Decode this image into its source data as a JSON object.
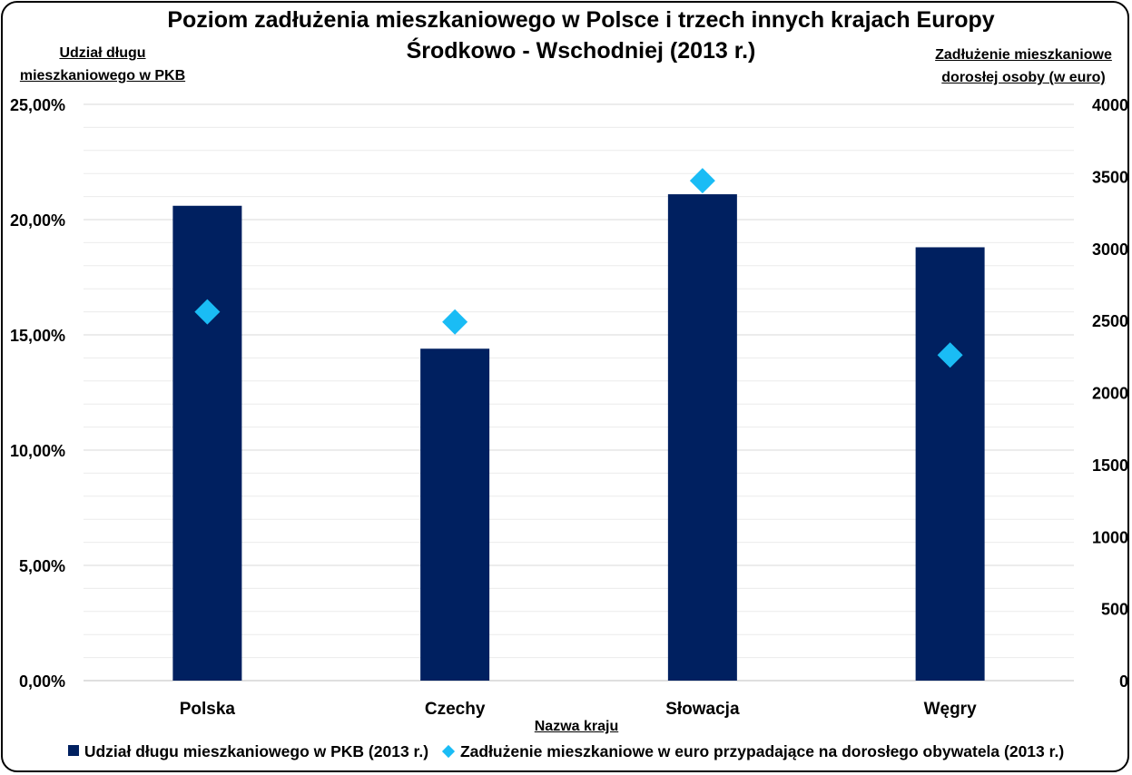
{
  "chart_data": {
    "type": "bar",
    "title_line1": "Poziom zadłużenia mieszkaniowego w Polsce i trzech innych krajach Europy",
    "title_line2": "Środkowo - Wschodniej (2013 r.)",
    "ylabel_left": "Udział długu mieszkaniowego w PKB",
    "ylabel_right": "Zadłużenie mieszkaniowe dorosłej osoby (w euro)",
    "xlabel": "Nazwa kraju",
    "categories": [
      "Polska",
      "Czechy",
      "Słowacja",
      "Węgry"
    ],
    "series": [
      {
        "name": "Udział długu mieszkaniowego w PKB (2013 r.)",
        "type": "bar",
        "axis": "left",
        "values": [
          20.6,
          14.4,
          21.1,
          18.8
        ],
        "color": "#002060"
      },
      {
        "name": "Zadłużenie mieszkaniowe w euro przypadające na dorosłego obywatela (2013 r.)",
        "type": "scatter",
        "marker": "diamond",
        "axis": "right",
        "values": [
          2560,
          2490,
          3470,
          2260
        ],
        "color": "#1ABCF5"
      }
    ],
    "ylim_left": [
      0,
      25
    ],
    "yticks_left": [
      "0,00%",
      "5,00%",
      "10,00%",
      "15,00%",
      "20,00%",
      "25,00%"
    ],
    "ylim_right": [
      0,
      4000
    ],
    "yticks_right": [
      "0",
      "500",
      "1000",
      "1500",
      "2000",
      "2500",
      "3000",
      "3500",
      "4000"
    ],
    "grid": true,
    "legend": "bottom"
  }
}
